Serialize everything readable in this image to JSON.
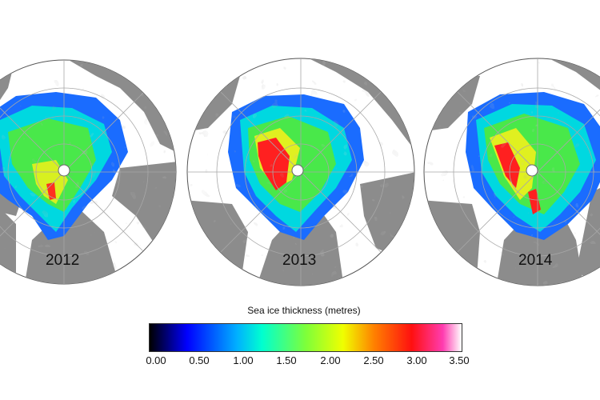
{
  "maps": [
    {
      "year": "2012"
    },
    {
      "year": "2013"
    },
    {
      "year": "2014"
    }
  ],
  "colorbar": {
    "title": "Sea ice thickness (metres)",
    "ticks": [
      "0.00",
      "0.50",
      "1.00",
      "1.50",
      "2.00",
      "2.50",
      "3.00",
      "3.50"
    ],
    "range": [
      0,
      3.5
    ]
  },
  "colors": {
    "land": "#8c8c8c",
    "ocean": "#ffffff",
    "gridlines": "#a8a8a8",
    "thin_ice": "#0040ff",
    "medium_ice": "#40f070",
    "thick_ice": "#ff2020",
    "thickest_ice": "#ff40b0"
  }
}
